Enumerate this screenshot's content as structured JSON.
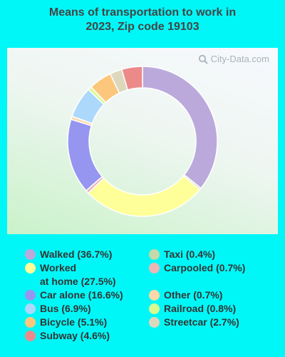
{
  "title_lines": [
    "Means of transportation to work in",
    "2023, Zip code 19103"
  ],
  "watermark": "City-Data.com",
  "chart_data": {
    "type": "pie",
    "variant": "donut",
    "title": "Means of transportation to work in 2023, Zip code 19103",
    "slices": [
      {
        "label": "Walked (36.7%)",
        "value": 36.7,
        "color": "#bba9dc"
      },
      {
        "label": "Taxi (0.4%)",
        "value": 0.4,
        "color": "#c6d9a8"
      },
      {
        "label": "Worked at home (27.5%)",
        "lines": [
          "Worked",
          "at home (27.5%)"
        ],
        "value": 27.5,
        "color": "#ffff99"
      },
      {
        "label": "Carpooled (0.7%)",
        "value": 0.7,
        "color": "#f0b6b6"
      },
      {
        "label": "Car alone (16.6%)",
        "value": 16.6,
        "color": "#9696f0"
      },
      {
        "label": "Other (0.7%)",
        "value": 0.7,
        "color": "#fdd8a8"
      },
      {
        "label": "Bus (6.9%)",
        "value": 6.9,
        "color": "#acd8fb"
      },
      {
        "label": "Railroad (0.8%)",
        "value": 0.8,
        "color": "#d8fa90"
      },
      {
        "label": "Bicycle (5.1%)",
        "value": 5.1,
        "color": "#fcc77c"
      },
      {
        "label": "Streetcar (2.7%)",
        "value": 2.7,
        "color": "#ddd8bd"
      },
      {
        "label": "Subway (4.6%)",
        "value": 4.6,
        "color": "#ec8a8a"
      }
    ],
    "legend_placement": "bottom",
    "background_color": "#00f7f7"
  }
}
